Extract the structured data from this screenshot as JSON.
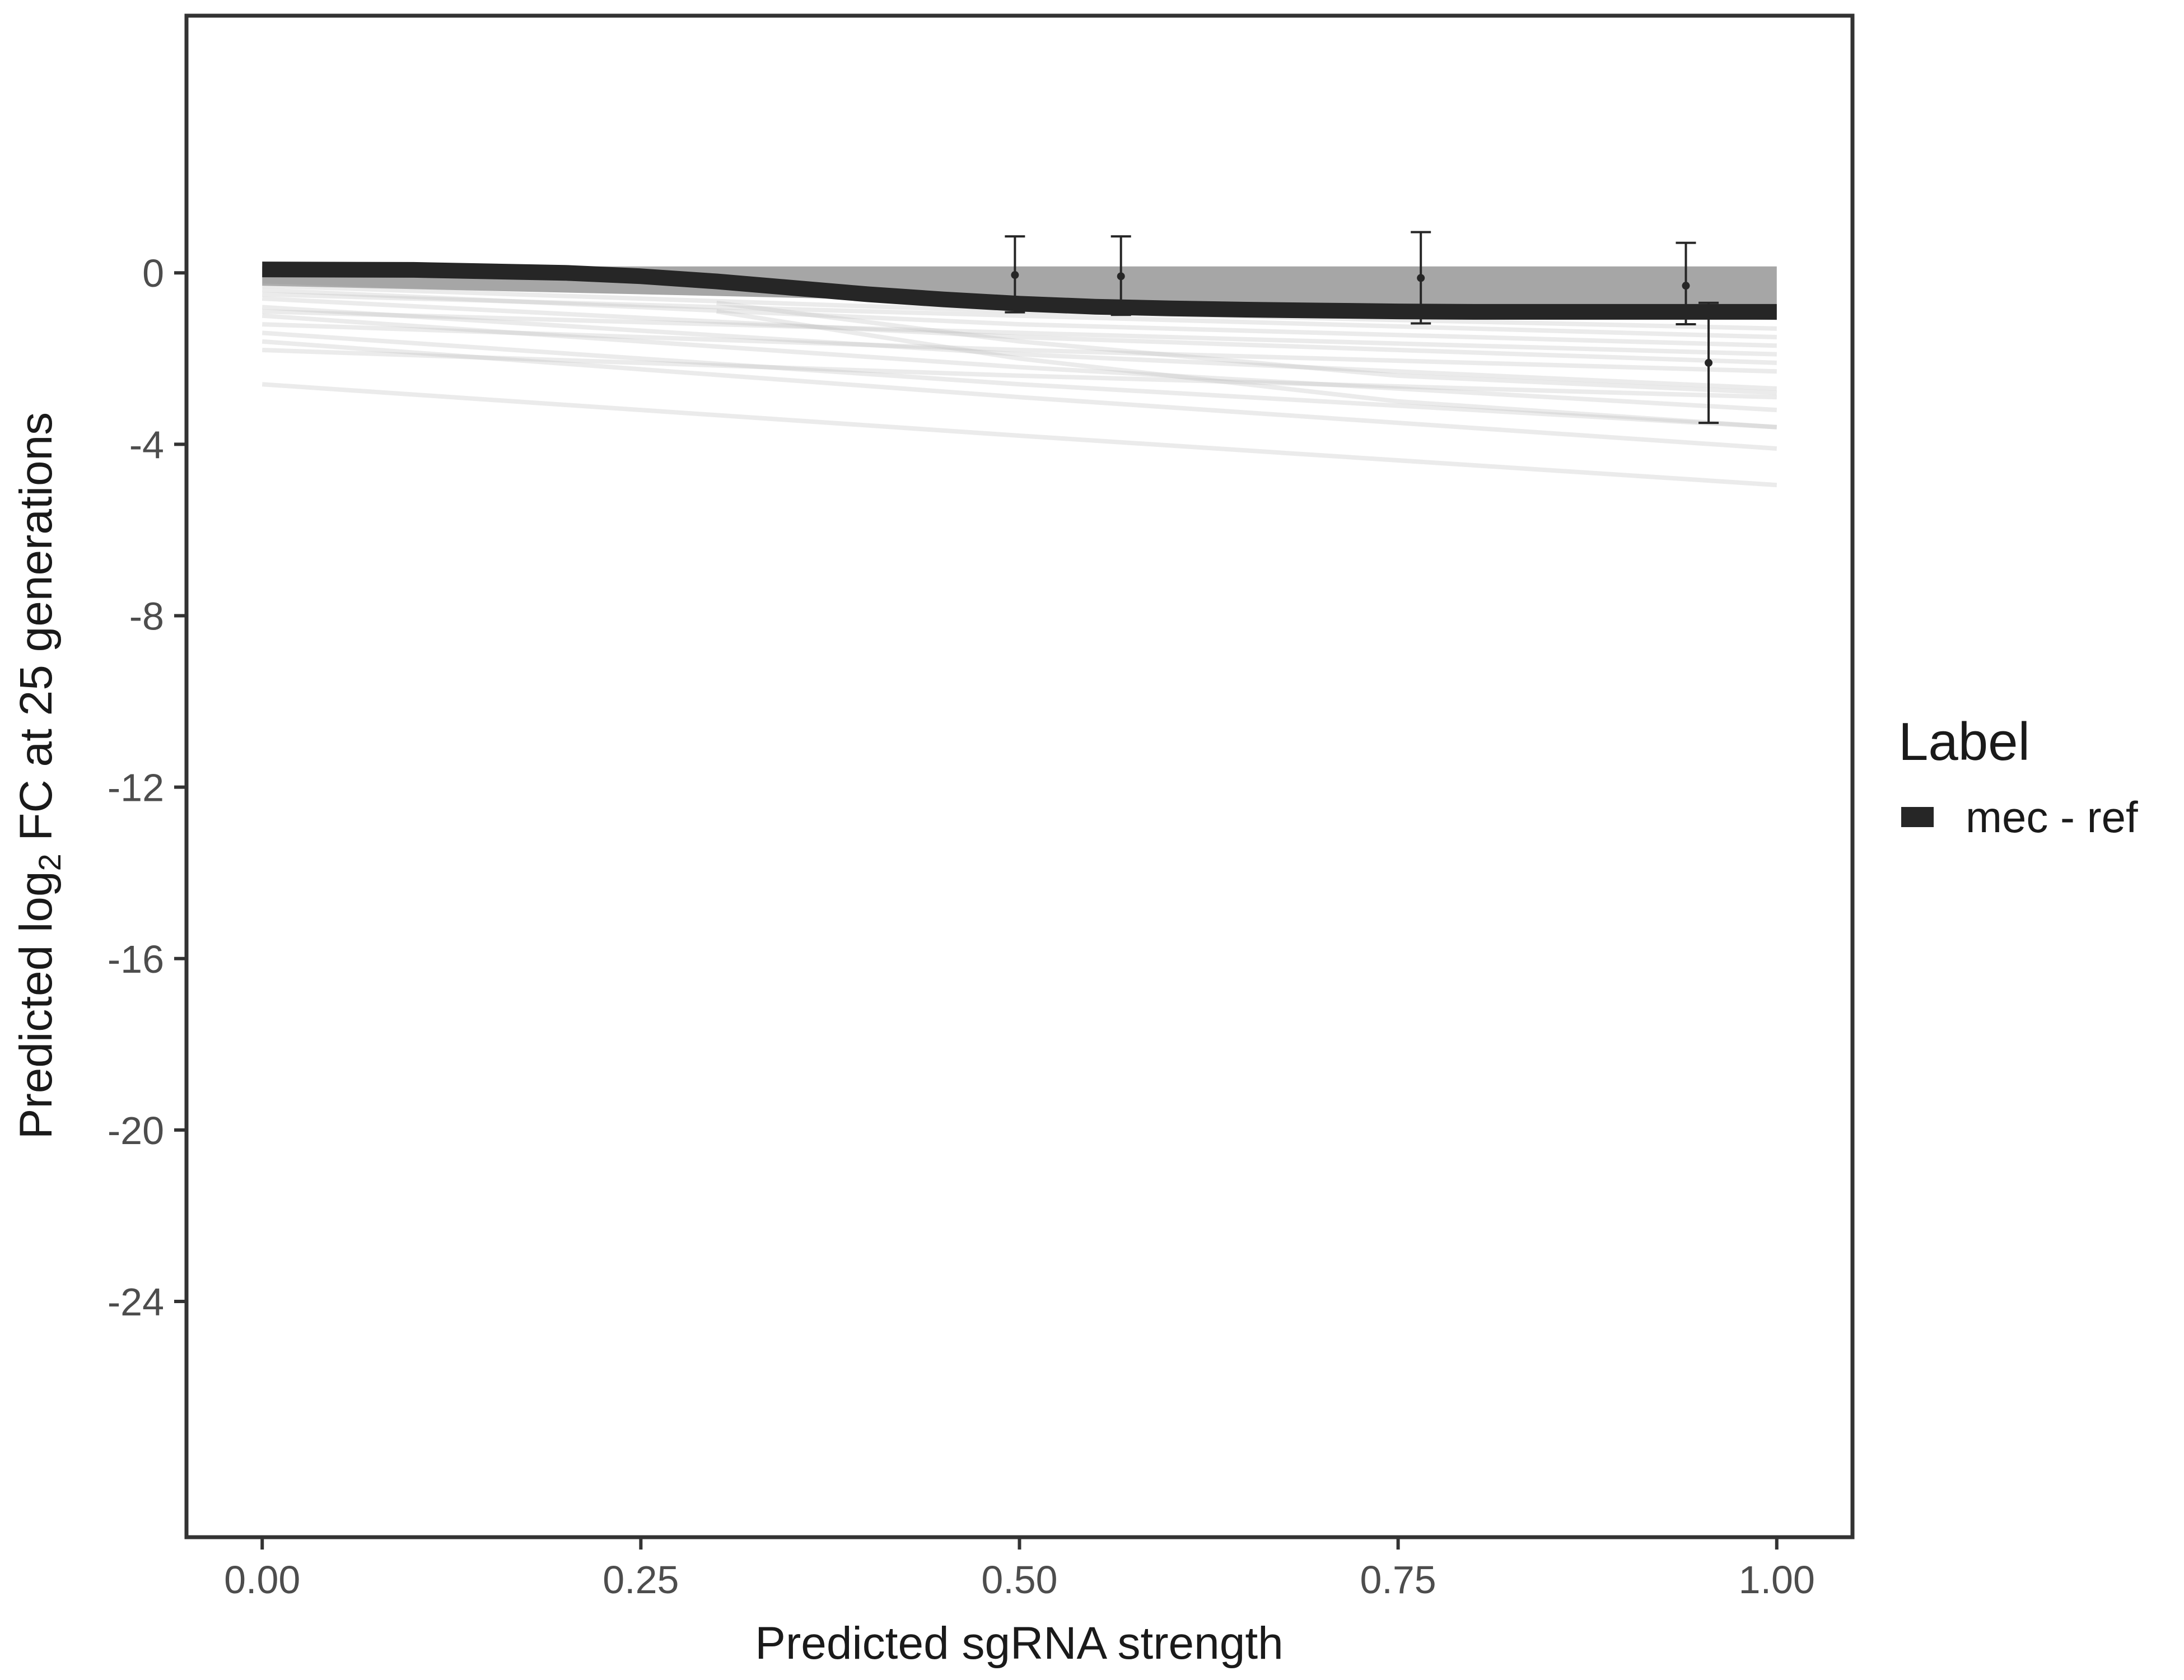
{
  "colors": {
    "reference_line": "#262626",
    "band": "#a6a6a6",
    "sample_lines": "#bdbdbd",
    "points": "#262626",
    "panel_border": "#333333"
  },
  "chart_data": {
    "type": "line",
    "xlabel": "Predicted sgRNA strength",
    "ylabel_parts": {
      "before": "Predicted  log",
      "sub": "2",
      "after": " FC at 25 generations"
    },
    "xlim": [
      -0.05,
      1.05
    ],
    "ylim": [
      -29.5,
      6.0
    ],
    "x_ticks": [
      0.0,
      0.25,
      0.5,
      0.75,
      1.0
    ],
    "x_tick_labels": [
      "0.00",
      "0.25",
      "0.50",
      "0.75",
      "1.00"
    ],
    "y_ticks": [
      0,
      -4,
      -8,
      -12,
      -16,
      -20,
      -24
    ],
    "y_tick_labels": [
      "0",
      "-4",
      "-8",
      "-12",
      "-16",
      "-20",
      "-24"
    ],
    "grid": false,
    "legend": {
      "title": "Label",
      "placement": "right",
      "entries": [
        "mec - ref"
      ]
    },
    "reference_curve": {
      "name": "mec - ref",
      "x": [
        0.0,
        0.1,
        0.2,
        0.25,
        0.3,
        0.35,
        0.4,
        0.45,
        0.5,
        0.55,
        0.6,
        0.65,
        0.7,
        0.75,
        0.8,
        0.85,
        0.9,
        0.95,
        1.0
      ],
      "y": [
        0.08,
        0.07,
        0.0,
        -0.08,
        -0.2,
        -0.35,
        -0.5,
        -0.62,
        -0.72,
        -0.79,
        -0.83,
        -0.86,
        -0.88,
        -0.9,
        -0.91,
        -0.91,
        -0.91,
        -0.91,
        -0.91
      ]
    },
    "band": {
      "x": [
        0.0,
        1.0
      ],
      "y_low": [
        -0.3,
        -1.1
      ],
      "y_high": [
        0.15,
        0.15
      ]
    },
    "sample_curves": [
      {
        "x": [
          0.0,
          0.5,
          1.0
        ],
        "y": [
          -2.6,
          -3.8,
          -4.95
        ]
      },
      {
        "x": [
          0.0,
          0.5,
          1.0
        ],
        "y": [
          -1.6,
          -2.9,
          -4.1
        ]
      },
      {
        "x": [
          0.0,
          0.5,
          1.0
        ],
        "y": [
          -1.4,
          -2.6,
          -3.6
        ]
      },
      {
        "x": [
          0.0,
          0.5,
          1.0
        ],
        "y": [
          -1.0,
          -2.2,
          -3.2
        ]
      },
      {
        "x": [
          0.0,
          0.5,
          1.0
        ],
        "y": [
          -1.8,
          -2.4,
          -2.9
        ]
      },
      {
        "x": [
          0.0,
          0.5,
          1.0
        ],
        "y": [
          -0.8,
          -1.9,
          -2.7
        ]
      },
      {
        "x": [
          0.0,
          0.5,
          1.0
        ],
        "y": [
          -1.2,
          -1.8,
          -2.3
        ]
      },
      {
        "x": [
          0.0,
          0.5,
          1.0
        ],
        "y": [
          -0.6,
          -1.5,
          -2.1
        ]
      },
      {
        "x": [
          0.0,
          0.5,
          1.0
        ],
        "y": [
          -0.9,
          -1.4,
          -1.9
        ]
      },
      {
        "x": [
          0.0,
          0.5,
          1.0
        ],
        "y": [
          -0.4,
          -1.2,
          -1.7
        ]
      },
      {
        "x": [
          0.0,
          0.5,
          1.0
        ],
        "y": [
          -0.5,
          -1.0,
          -1.5
        ]
      },
      {
        "x": [
          0.0,
          0.5,
          1.0
        ],
        "y": [
          -0.3,
          -0.9,
          -1.3
        ]
      },
      {
        "x": [
          0.3,
          0.5,
          0.75,
          1.0
        ],
        "y": [
          -0.9,
          -2.0,
          -3.0,
          -3.6
        ]
      },
      {
        "x": [
          0.3,
          0.5,
          0.75,
          1.0
        ],
        "y": [
          -0.7,
          -1.6,
          -2.4,
          -2.8
        ]
      }
    ],
    "points": [
      {
        "x": 0.497,
        "y": -0.05,
        "ymin": -0.92,
        "ymax": 0.85
      },
      {
        "x": 0.567,
        "y": -0.08,
        "ymin": -0.98,
        "ymax": 0.85
      },
      {
        "x": 0.765,
        "y": -0.12,
        "ymin": -1.18,
        "ymax": 0.95
      },
      {
        "x": 0.94,
        "y": -0.3,
        "ymin": -1.2,
        "ymax": 0.7
      },
      {
        "x": 0.955,
        "y": -2.1,
        "ymin": -3.5,
        "ymax": -0.7
      }
    ]
  }
}
